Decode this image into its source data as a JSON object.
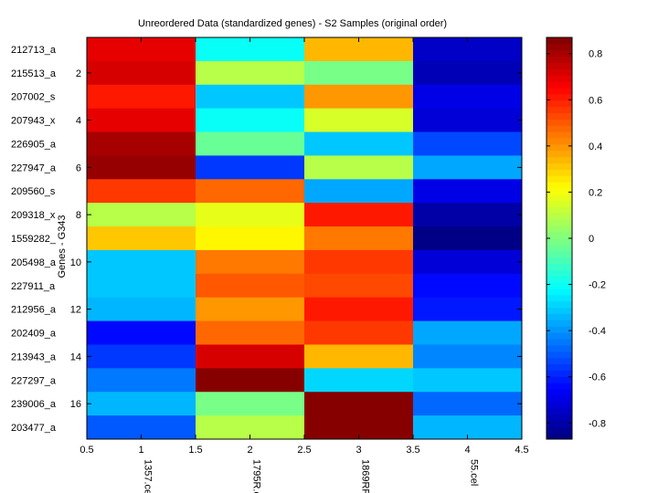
{
  "chart_data": {
    "type": "heatmap",
    "title": "Unreordered Data (standardized genes) - S2 Samples (original order)",
    "ylabel": "Genes - G343",
    "xlabel": "",
    "row_labels": [
      "212713_a",
      "215513_a",
      "207002_s",
      "207943_x",
      "226905_a",
      "227947_a",
      "209560_s",
      "209318_x",
      "1559282_",
      "205498_a",
      "227911_a",
      "212956_a",
      "202409_a",
      "213943_a",
      "227297_a",
      "239006_a",
      "203477_a"
    ],
    "col_labels": [
      "1357.cel",
      "1795R.c",
      "1869RR",
      "55.cel"
    ],
    "xticks": [
      "0.5",
      "1",
      "1.5",
      "2",
      "2.5",
      "3",
      "3.5",
      "4",
      "4.5"
    ],
    "yticks": [
      "2",
      "4",
      "6",
      "8",
      "10",
      "12",
      "14",
      "16"
    ],
    "xlim": [
      0.5,
      4.5
    ],
    "ylim": [
      0.5,
      17.5
    ],
    "clim": [
      -0.87,
      0.87
    ],
    "colormap": "jet",
    "colorbar_ticks": [
      "-0.8",
      "-0.6",
      "-0.4",
      "-0.2",
      "0",
      "0.2",
      "0.4",
      "0.6",
      "0.8"
    ],
    "values": [
      [
        0.68,
        -0.2,
        0.35,
        -0.75
      ],
      [
        0.72,
        0.1,
        0.0,
        -0.78
      ],
      [
        0.6,
        -0.3,
        0.4,
        -0.68
      ],
      [
        0.68,
        -0.2,
        0.15,
        -0.72
      ],
      [
        0.8,
        -0.05,
        -0.3,
        -0.52
      ],
      [
        0.82,
        -0.55,
        0.1,
        -0.38
      ],
      [
        0.55,
        0.48,
        -0.38,
        -0.68
      ],
      [
        0.1,
        0.17,
        0.62,
        -0.8
      ],
      [
        0.32,
        0.22,
        0.45,
        -0.85
      ],
      [
        -0.3,
        0.45,
        0.55,
        -0.72
      ],
      [
        -0.32,
        0.5,
        0.52,
        -0.65
      ],
      [
        -0.35,
        0.4,
        0.62,
        -0.62
      ],
      [
        -0.65,
        0.48,
        0.55,
        -0.38
      ],
      [
        -0.55,
        0.72,
        0.35,
        -0.42
      ],
      [
        -0.45,
        0.85,
        -0.28,
        -0.3
      ],
      [
        -0.35,
        -0.02,
        0.85,
        -0.48
      ],
      [
        -0.5,
        0.1,
        0.85,
        -0.35
      ]
    ]
  }
}
